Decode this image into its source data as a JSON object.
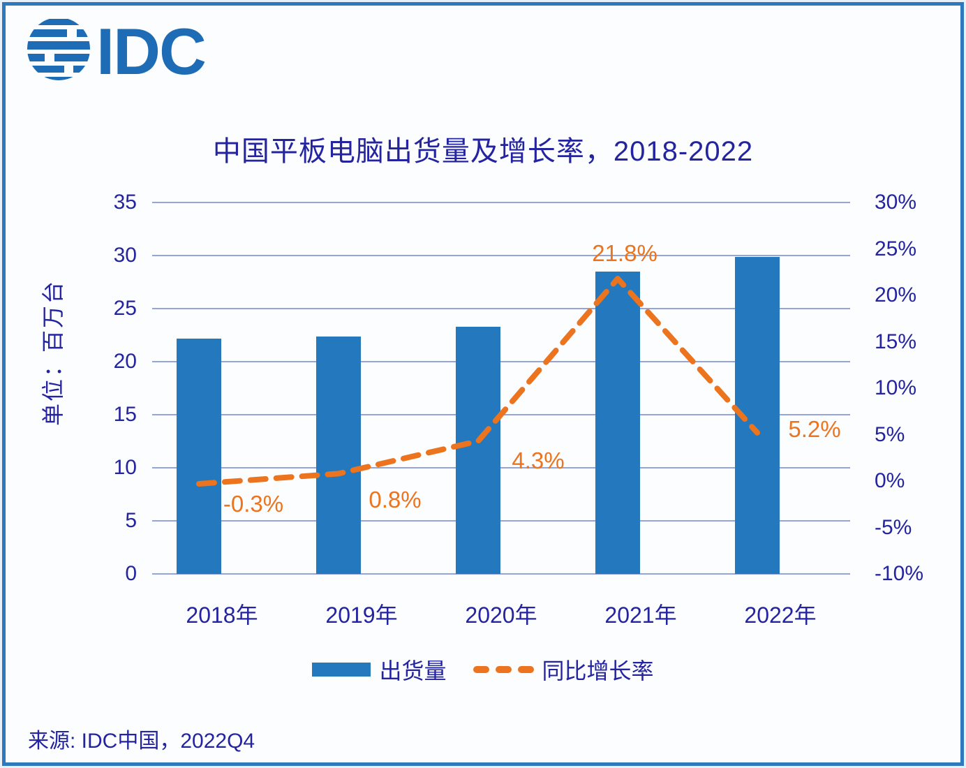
{
  "page": {
    "background": "#E8F0F9",
    "frame_border_color": "#2E79BE"
  },
  "logo": {
    "text": "IDC",
    "color": "#1E6CB5",
    "icon": "striped-globe-icon"
  },
  "title": {
    "text": "中国平板电脑出货量及增长率，2018-2022",
    "color": "#2424A0"
  },
  "chart_data": {
    "type": "bar",
    "subtype": "combo-bar-line-dual-axis",
    "categories": [
      "2018年",
      "2019年",
      "2020年",
      "2021年",
      "2022年"
    ],
    "series": [
      {
        "name": "出货量",
        "type": "bar",
        "axis": "left",
        "color": "#2478BD",
        "values": [
          22.2,
          22.4,
          23.3,
          28.5,
          29.9
        ]
      },
      {
        "name": "同比增长率",
        "type": "line",
        "style": "dashed",
        "axis": "right",
        "color": "#EC741E",
        "values": [
          -0.3,
          0.8,
          4.3,
          21.8,
          5.2
        ],
        "point_labels": [
          "-0.3%",
          "0.8%",
          "4.3%",
          "21.8%",
          "5.2%"
        ]
      }
    ],
    "left_axis": {
      "title": "单位：百万台",
      "min": 0,
      "max": 35,
      "step": 5,
      "ticks": [
        "35",
        "30",
        "25",
        "20",
        "15",
        "10",
        "5",
        "0"
      ]
    },
    "right_axis": {
      "min": -10,
      "max": 30,
      "step": 5,
      "ticks": [
        "30%",
        "25%",
        "20%",
        "15%",
        "10%",
        "5%",
        "0%",
        "-5%",
        "-10%"
      ]
    },
    "grid": "horizontal",
    "gridline_color": "#94A3DA",
    "legend_position": "bottom"
  },
  "legend": {
    "items": [
      {
        "label": "出货量",
        "swatch": "blue-bar"
      },
      {
        "label": "同比增长率",
        "swatch": "orange-dashed-line"
      }
    ]
  },
  "source": {
    "text": "来源: IDC中国，2022Q4"
  }
}
